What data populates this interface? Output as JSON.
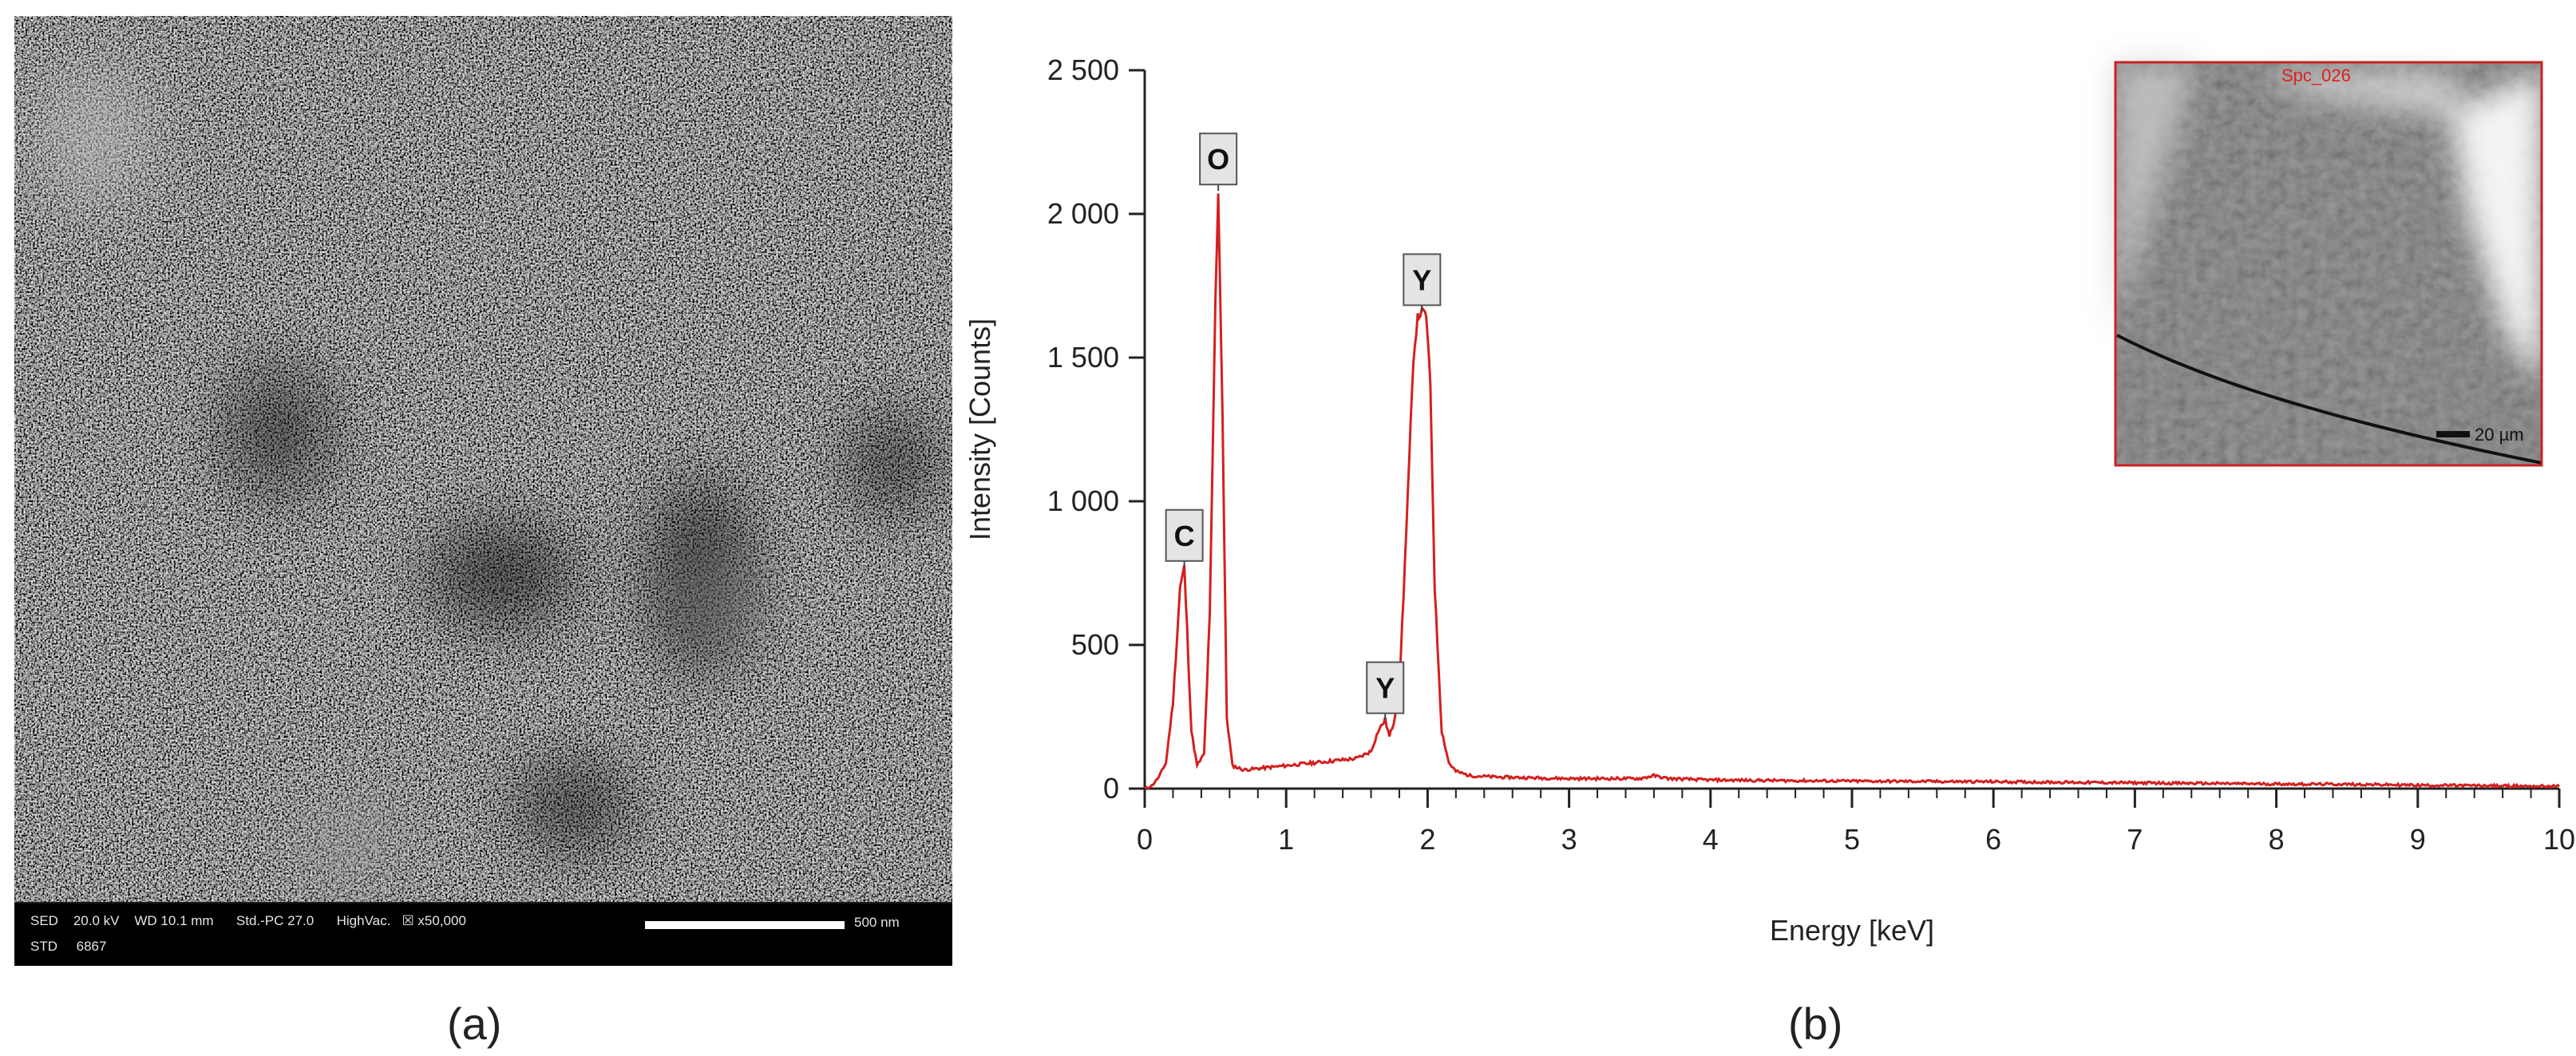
{
  "panels": {
    "a_label": "(a)",
    "b_label": "(b)"
  },
  "sem": {
    "info_line1": "SED    20.0 kV    WD 10.1 mm      Std.-PC 27.0      HighVac.   ☒ x50,000",
    "info_line2": "STD     6867",
    "scale_label": "500 nm"
  },
  "inset": {
    "spot_label": "Spc_026",
    "scale_label": "20 µm"
  },
  "chart_data": {
    "type": "line",
    "title": "",
    "xlabel": "Energy [keV]",
    "ylabel": "Intensity [Counts]",
    "xlim": [
      0,
      10
    ],
    "ylim": [
      0,
      2500
    ],
    "x_ticks": [
      0,
      1,
      2,
      3,
      4,
      5,
      6,
      7,
      8,
      9,
      10
    ],
    "x_tick_labels": [
      "0",
      "1",
      "2",
      "3",
      "4",
      "5",
      "6",
      "7",
      "8",
      "9",
      "10"
    ],
    "y_ticks": [
      0,
      500,
      1000,
      1500,
      2000,
      2500
    ],
    "y_tick_labels": [
      "0",
      "500",
      "1 000",
      "1 500",
      "2 000",
      "2 500"
    ],
    "grid": false,
    "series": [
      {
        "color": "#d42020",
        "x": [
          0.0,
          0.05,
          0.1,
          0.15,
          0.2,
          0.25,
          0.28,
          0.3,
          0.33,
          0.37,
          0.42,
          0.46,
          0.5,
          0.52,
          0.55,
          0.58,
          0.62,
          0.7,
          0.8,
          0.9,
          1.0,
          1.1,
          1.2,
          1.3,
          1.4,
          1.5,
          1.6,
          1.65,
          1.7,
          1.73,
          1.76,
          1.8,
          1.85,
          1.9,
          1.93,
          1.96,
          1.99,
          2.02,
          2.05,
          2.1,
          2.15,
          2.2,
          2.3,
          2.5,
          3.0,
          3.5,
          3.6,
          3.7,
          4.0,
          4.5,
          5.0,
          5.5,
          6.0,
          6.5,
          7.0,
          7.5,
          8.0,
          8.5,
          9.0,
          9.5,
          10.0
        ],
        "y": [
          0,
          10,
          40,
          90,
          300,
          700,
          770,
          550,
          200,
          80,
          120,
          600,
          1700,
          2080,
          1300,
          250,
          80,
          65,
          70,
          75,
          80,
          85,
          90,
          95,
          100,
          105,
          130,
          200,
          240,
          180,
          230,
          350,
          900,
          1500,
          1640,
          1660,
          1650,
          1400,
          700,
          200,
          90,
          60,
          45,
          40,
          35,
          35,
          45,
          35,
          30,
          28,
          26,
          25,
          24,
          22,
          20,
          18,
          16,
          15,
          12,
          10,
          8
        ]
      }
    ],
    "annotations": [
      {
        "text": "O",
        "x": 0.52,
        "y": 2080
      },
      {
        "text": "C",
        "x": 0.28,
        "y": 770
      },
      {
        "text": "Y",
        "x": 1.96,
        "y": 1660
      },
      {
        "text": "Y",
        "x": 1.7,
        "y": 240
      }
    ]
  }
}
